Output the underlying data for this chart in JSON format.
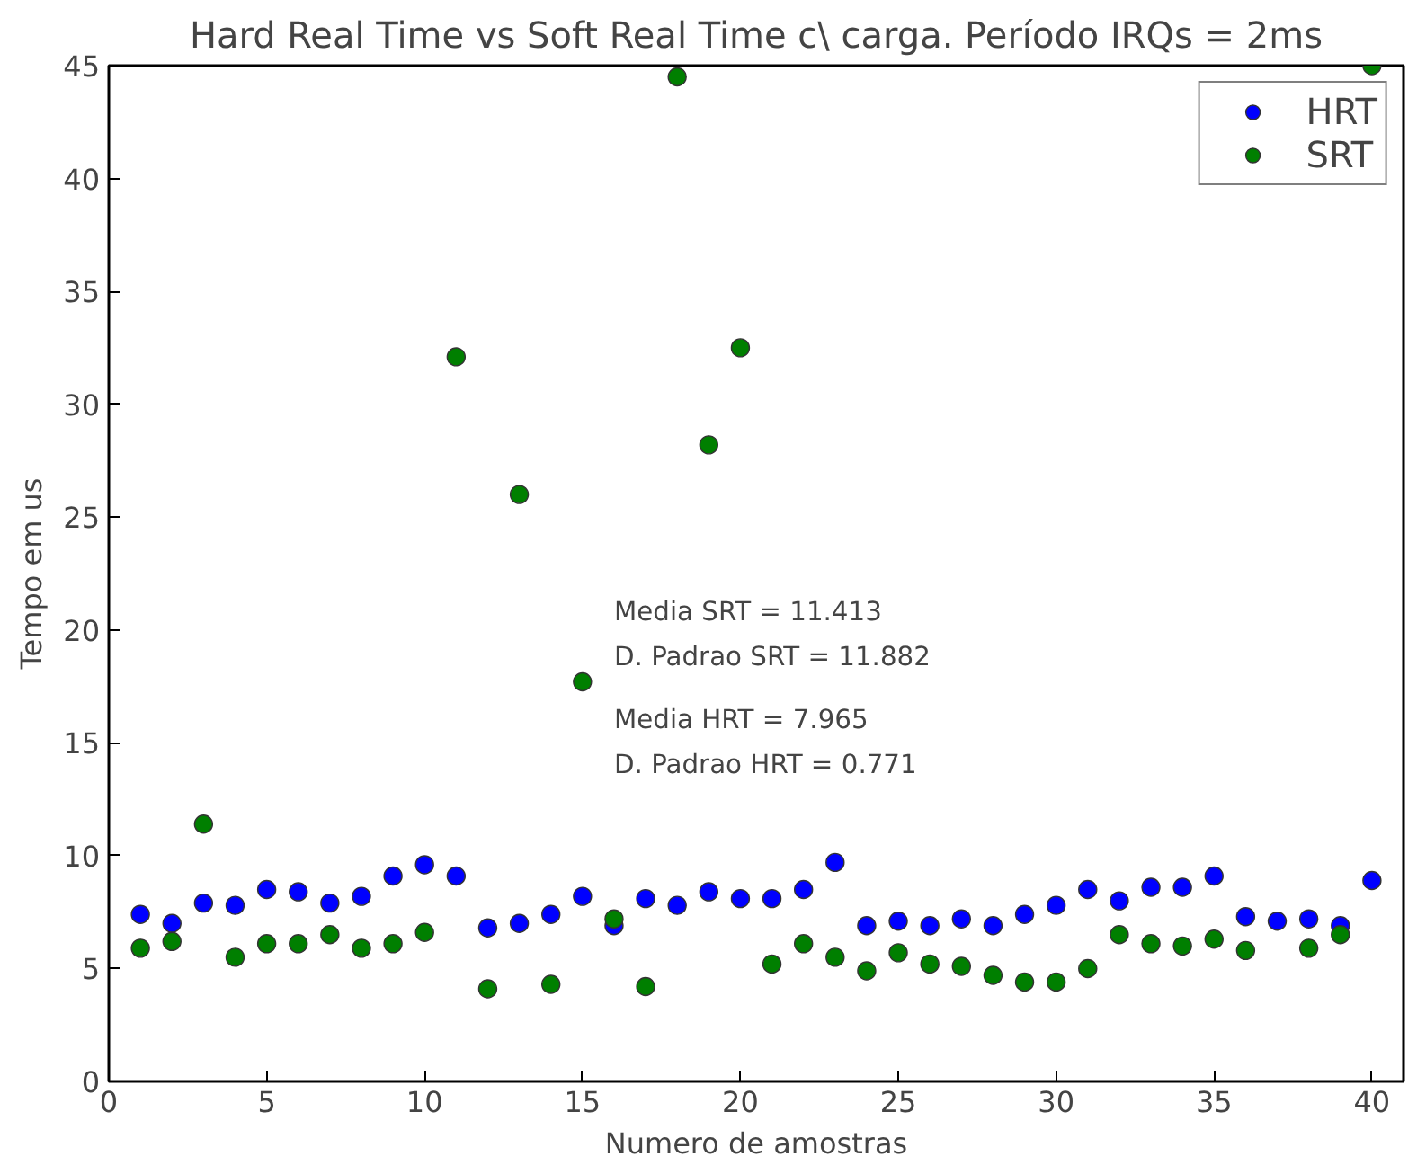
{
  "chart_data": {
    "type": "scatter",
    "title": "Hard Real Time vs Soft Real Time c\\ carga. Período IRQs = 2ms",
    "xlabel": "Numero de amostras",
    "ylabel": "Tempo em us",
    "x": [
      1,
      2,
      3,
      4,
      5,
      6,
      7,
      8,
      9,
      10,
      11,
      12,
      13,
      14,
      15,
      16,
      17,
      18,
      19,
      20,
      21,
      22,
      23,
      24,
      25,
      26,
      27,
      28,
      29,
      30,
      31,
      32,
      33,
      34,
      35,
      36,
      37,
      38,
      39,
      40
    ],
    "series": [
      {
        "name": "HRT",
        "color": "#0000ff",
        "values": [
          7.4,
          7.0,
          7.9,
          7.8,
          8.5,
          8.4,
          7.9,
          8.2,
          9.1,
          9.6,
          9.1,
          6.8,
          7.0,
          7.4,
          8.2,
          6.9,
          8.1,
          7.8,
          8.4,
          8.1,
          8.1,
          8.5,
          9.7,
          6.9,
          7.1,
          6.9,
          7.2,
          6.9,
          7.4,
          7.8,
          8.5,
          8.0,
          8.6,
          8.6,
          9.1,
          7.3,
          7.1,
          7.2,
          6.9,
          8.9
        ]
      },
      {
        "name": "SRT",
        "color": "#007f00",
        "values": [
          5.9,
          6.2,
          11.4,
          5.5,
          6.1,
          6.1,
          6.5,
          5.9,
          6.1,
          6.6,
          32.1,
          4.1,
          26.0,
          4.3,
          17.7,
          7.2,
          4.2,
          44.5,
          28.2,
          32.5,
          5.2,
          6.1,
          5.5,
          4.9,
          5.7,
          5.2,
          5.1,
          4.7,
          4.4,
          4.4,
          5.0,
          6.5,
          6.1,
          6.0,
          6.3,
          5.8,
          null,
          5.9,
          6.5,
          45
        ]
      }
    ],
    "annotations": [
      "Media SRT = 11.413",
      "D. Padrao SRT = 11.882",
      "Media HRT =  7.965",
      "D. Padrao HRT = 0.771"
    ],
    "xlim": [
      0,
      41
    ],
    "ylim": [
      0,
      45
    ],
    "xticks": [
      0,
      5,
      10,
      15,
      20,
      25,
      30,
      35,
      40
    ],
    "yticks": [
      0,
      5,
      10,
      15,
      20,
      25,
      30,
      35,
      40,
      45
    ],
    "grid": false,
    "legend": "top right",
    "marker": "circle"
  }
}
